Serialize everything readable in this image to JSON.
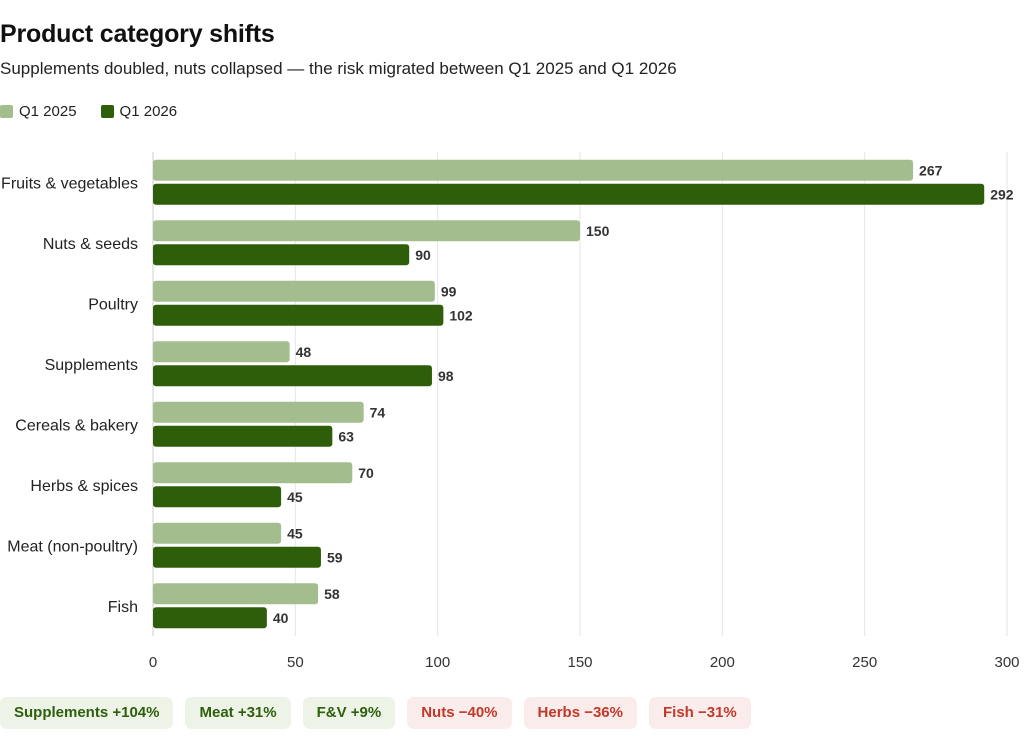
{
  "title": "Product category shifts",
  "subtitle": "Supplements doubled, nuts collapsed — the risk migrated between Q1 2025 and Q1 2026",
  "colors": {
    "q1_2025": "#a4bd8e",
    "q1_2026": "#2e5e0a",
    "grid": "#e6e6e6",
    "up_text": "#2d5f0c",
    "down_text": "#c0392b"
  },
  "chart_data": {
    "type": "bar",
    "orientation": "horizontal",
    "categories": [
      "Fruits & vegetables",
      "Nuts & seeds",
      "Poultry",
      "Supplements",
      "Cereals & bakery",
      "Herbs & spices",
      "Meat (non-poultry)",
      "Fish"
    ],
    "series": [
      {
        "name": "Q1 2025",
        "values": [
          267,
          150,
          99,
          48,
          74,
          70,
          45,
          58
        ]
      },
      {
        "name": "Q1 2026",
        "values": [
          292,
          90,
          102,
          98,
          63,
          45,
          59,
          40
        ]
      }
    ],
    "xlim": [
      0,
      300
    ],
    "xticks": [
      0,
      50,
      100,
      150,
      200,
      250,
      300
    ],
    "grid": true,
    "legend": "top-left",
    "xlabel": "",
    "ylabel": ""
  },
  "badges": [
    {
      "label": "Supplements +104%",
      "direction": "up"
    },
    {
      "label": "Meat +31%",
      "direction": "up"
    },
    {
      "label": "F&V +9%",
      "direction": "up"
    },
    {
      "label": "Nuts −40%",
      "direction": "down"
    },
    {
      "label": "Herbs −36%",
      "direction": "down"
    },
    {
      "label": "Fish −31%",
      "direction": "down"
    }
  ]
}
